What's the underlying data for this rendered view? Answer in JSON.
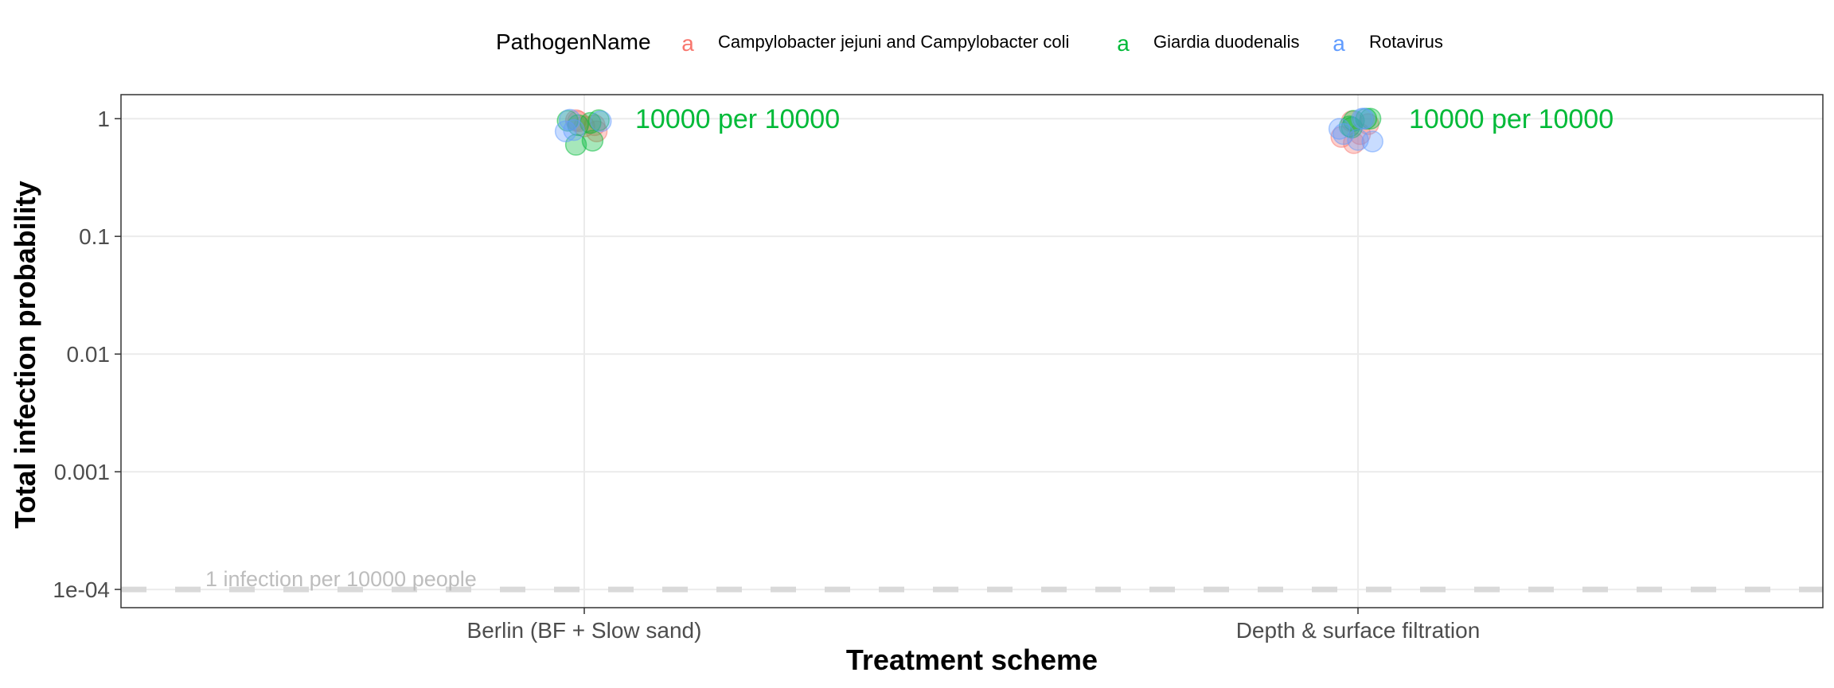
{
  "chart_data": {
    "type": "scatter",
    "title": "",
    "xlabel": "Treatment scheme",
    "ylabel": "Total infection probability",
    "y_scale": "log10",
    "ylim": [
      7e-05,
      1.6
    ],
    "y_ticks": [
      {
        "value": 1,
        "label": "1"
      },
      {
        "value": 0.1,
        "label": "0.1"
      },
      {
        "value": 0.01,
        "label": "0.01"
      },
      {
        "value": 0.001,
        "label": "0.001"
      },
      {
        "value": 0.0001,
        "label": "1e-04"
      }
    ],
    "categories": [
      "Berlin (BF + Slow sand)",
      "Depth & surface filtration"
    ],
    "grid": true,
    "legend": {
      "title": "PathogenName",
      "position": "top",
      "key_glyph": "a"
    },
    "series": [
      {
        "name": "Campylobacter jejuni and Campylobacter coli",
        "color": "#F8766D",
        "points": [
          {
            "category": 0,
            "jitter": -0.02,
            "y": 0.97
          },
          {
            "category": 0,
            "jitter": -0.015,
            "y": 0.95
          },
          {
            "category": 0,
            "jitter": 0.0,
            "y": 0.86
          },
          {
            "category": 0,
            "jitter": 0.025,
            "y": 0.88
          },
          {
            "category": 0,
            "jitter": 0.03,
            "y": 0.78
          },
          {
            "category": 1,
            "jitter": -0.04,
            "y": 0.7
          },
          {
            "category": 1,
            "jitter": -0.015,
            "y": 0.95
          },
          {
            "category": 1,
            "jitter": -0.01,
            "y": 0.62
          },
          {
            "category": 1,
            "jitter": 0.005,
            "y": 0.74
          },
          {
            "category": 1,
            "jitter": 0.025,
            "y": 0.9
          }
        ]
      },
      {
        "name": "Giardia duodenalis",
        "color": "#00BA38",
        "points": [
          {
            "category": 0,
            "jitter": -0.04,
            "y": 0.96
          },
          {
            "category": 0,
            "jitter": -0.02,
            "y": 0.6
          },
          {
            "category": 0,
            "jitter": -0.015,
            "y": 0.88
          },
          {
            "category": 0,
            "jitter": 0.015,
            "y": 0.92
          },
          {
            "category": 0,
            "jitter": 0.02,
            "y": 0.65
          },
          {
            "category": 0,
            "jitter": 0.035,
            "y": 0.97
          },
          {
            "category": 1,
            "jitter": -0.02,
            "y": 0.86
          },
          {
            "category": 1,
            "jitter": -0.015,
            "y": 0.84
          },
          {
            "category": 1,
            "jitter": -0.01,
            "y": 0.96
          },
          {
            "category": 1,
            "jitter": 0.02,
            "y": 1.0
          },
          {
            "category": 1,
            "jitter": 0.03,
            "y": 1.0
          }
        ]
      },
      {
        "name": "Rotavirus",
        "color": "#619CFF",
        "points": [
          {
            "category": 0,
            "jitter": -0.045,
            "y": 0.78
          },
          {
            "category": 0,
            "jitter": -0.035,
            "y": 0.98
          },
          {
            "category": 0,
            "jitter": -0.025,
            "y": 0.8
          },
          {
            "category": 0,
            "jitter": 0.04,
            "y": 0.95
          },
          {
            "category": 1,
            "jitter": -0.045,
            "y": 0.82
          },
          {
            "category": 1,
            "jitter": -0.035,
            "y": 0.74
          },
          {
            "category": 1,
            "jitter": 0.0,
            "y": 0.66
          },
          {
            "category": 1,
            "jitter": 0.01,
            "y": 1.0
          },
          {
            "category": 1,
            "jitter": 0.015,
            "y": 1.0
          },
          {
            "category": 1,
            "jitter": 0.035,
            "y": 0.64
          }
        ]
      }
    ],
    "annotations": [
      {
        "text": "10000 per 10000",
        "category": 0,
        "y": 1,
        "color": "#00BA38"
      },
      {
        "text": "10000 per 10000",
        "category": 1,
        "y": 1,
        "color": "#00BA38"
      }
    ],
    "reference_line": {
      "y": 0.0001,
      "label": "1 infection per 10000 people",
      "color": "#d9d9d9",
      "style": "dashed"
    }
  }
}
